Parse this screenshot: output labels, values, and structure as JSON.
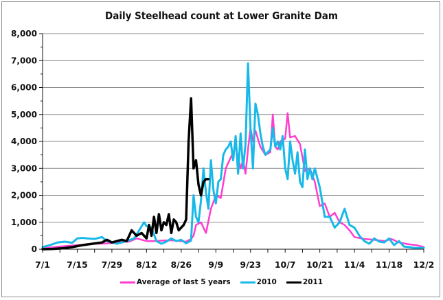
{
  "chart_data": {
    "type": "line",
    "title": "Daily Steelhead count at Lower Granite Dam",
    "xlabel": "",
    "ylabel": "",
    "ylim": [
      0,
      8000
    ],
    "yticks": [
      "0",
      "1,000",
      "2,000",
      "3,000",
      "4,000",
      "5,000",
      "6,000",
      "7,000",
      "8,000"
    ],
    "ytick_values": [
      0,
      1000,
      2000,
      3000,
      4000,
      5000,
      6000,
      7000,
      8000
    ],
    "xlim_days": [
      0,
      154
    ],
    "xticks": [
      "7/1",
      "7/15",
      "7/29",
      "8/12",
      "8/26",
      "9/9",
      "9/23",
      "10/7",
      "10/21",
      "11/4",
      "11/18",
      "12/2"
    ],
    "xtick_days": [
      0,
      14,
      28,
      42,
      56,
      70,
      84,
      98,
      112,
      126,
      140,
      154
    ],
    "grid": true,
    "legend_position": "bottom",
    "series": [
      {
        "name": "Average of last 5 years",
        "color": "#ff3dd0",
        "x": [
          0,
          3,
          7,
          10,
          14,
          18,
          21,
          25,
          28,
          31,
          35,
          38,
          42,
          45,
          49,
          52,
          56,
          58,
          60,
          61,
          62,
          64,
          66,
          68,
          70,
          72,
          74,
          76,
          78,
          80,
          81,
          82,
          83,
          84,
          85,
          86,
          88,
          90,
          92,
          93,
          94,
          95,
          96,
          98,
          99,
          100,
          102,
          104,
          106,
          108,
          110,
          112,
          114,
          116,
          118,
          120,
          122,
          124,
          126,
          130,
          134,
          138,
          141,
          144,
          148,
          151,
          154
        ],
        "values": [
          30,
          60,
          100,
          120,
          150,
          170,
          200,
          210,
          230,
          260,
          280,
          400,
          300,
          300,
          320,
          330,
          300,
          280,
          380,
          500,
          900,
          1000,
          600,
          1500,
          2000,
          1900,
          3000,
          3400,
          3800,
          3000,
          3300,
          2800,
          3700,
          4500,
          4000,
          4400,
          3800,
          3500,
          3600,
          5000,
          3800,
          3700,
          4000,
          4100,
          5050,
          4150,
          4200,
          3900,
          2900,
          3000,
          2500,
          1600,
          1700,
          1200,
          1350,
          1000,
          900,
          700,
          450,
          380,
          350,
          300,
          380,
          250,
          180,
          150,
          80
        ]
      },
      {
        "name": "2010",
        "color": "#17b9e8",
        "x": [
          0,
          3,
          6,
          9,
          12,
          14,
          16,
          18,
          21,
          24,
          26,
          28,
          30,
          32,
          34,
          37,
          39,
          41,
          42,
          44,
          46,
          48,
          50,
          52,
          54,
          56,
          58,
          60,
          61,
          62,
          63,
          64,
          65,
          66,
          67,
          68,
          69,
          70,
          71,
          72,
          73,
          74,
          75,
          76,
          77,
          78,
          79,
          80,
          81,
          82,
          83,
          84,
          85,
          86,
          87,
          88,
          89,
          90,
          91,
          92,
          93,
          94,
          95,
          96,
          97,
          98,
          99,
          100,
          101,
          102,
          103,
          104,
          105,
          106,
          107,
          108,
          109,
          110,
          112,
          114,
          116,
          118,
          120,
          122,
          124,
          126,
          128,
          130,
          132,
          134,
          136,
          138,
          140,
          142,
          144,
          146,
          148,
          150,
          152,
          154
        ],
        "values": [
          80,
          150,
          250,
          280,
          240,
          400,
          420,
          400,
          380,
          450,
          300,
          250,
          200,
          250,
          300,
          400,
          700,
          1000,
          850,
          800,
          300,
          200,
          280,
          400,
          300,
          350,
          220,
          320,
          2000,
          1200,
          1000,
          1800,
          3000,
          2100,
          1500,
          3300,
          2200,
          1700,
          2500,
          2600,
          3500,
          3700,
          3800,
          4000,
          3300,
          4200,
          2800,
          4300,
          3000,
          3900,
          6900,
          4500,
          3000,
          5400,
          5000,
          4300,
          3800,
          3500,
          3600,
          3700,
          4500,
          3800,
          4000,
          3700,
          4200,
          3000,
          2600,
          4000,
          3300,
          2800,
          3600,
          2500,
          2300,
          3700,
          2600,
          3000,
          2600,
          3000,
          2300,
          1200,
          1200,
          800,
          1000,
          1500,
          900,
          800,
          500,
          300,
          200,
          400,
          280,
          250,
          400,
          150,
          300,
          100,
          80,
          50,
          40,
          50
        ]
      },
      {
        "name": "2011",
        "color": "#000000",
        "x": [
          0,
          4,
          8,
          12,
          16,
          20,
          24,
          26,
          28,
          30,
          32,
          34,
          36,
          38,
          40,
          42,
          43,
          44,
          45,
          46,
          47,
          48,
          49,
          50,
          51,
          52,
          53,
          54,
          55,
          56,
          57,
          58,
          59,
          60,
          61,
          62,
          63,
          64,
          65,
          66,
          67
        ],
        "values": [
          0,
          10,
          30,
          80,
          150,
          200,
          250,
          350,
          250,
          300,
          350,
          300,
          700,
          500,
          600,
          400,
          900,
          500,
          1200,
          600,
          1300,
          700,
          1000,
          900,
          1300,
          600,
          1100,
          1000,
          700,
          800,
          900,
          1100,
          4000,
          5600,
          3000,
          3300,
          2400,
          2000,
          2500,
          2600,
          2600
        ]
      }
    ]
  }
}
